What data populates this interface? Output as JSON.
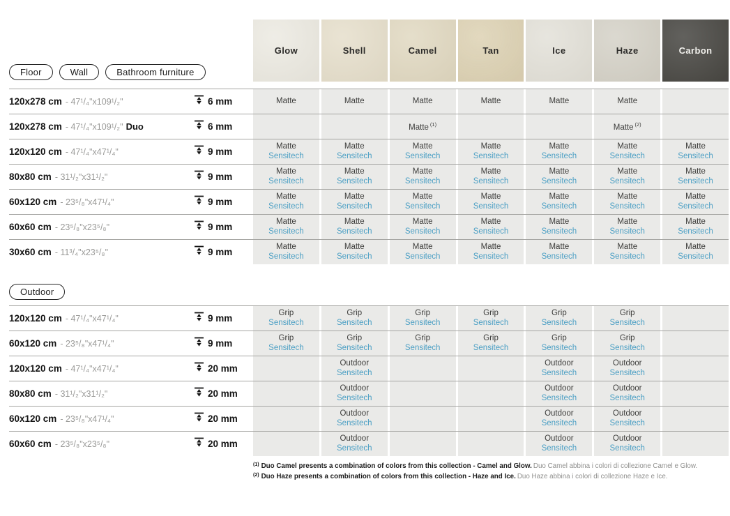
{
  "ui": {
    "accent_blue": "#4b9fc4",
    "cell_bg": "#eaeae8",
    "row_line": "#a5a5a2"
  },
  "filters": {
    "floor": "Floor",
    "wall": "Wall",
    "bathroom_furniture": "Bathroom furniture",
    "outdoor": "Outdoor"
  },
  "columns": [
    {
      "label": "Glow",
      "swatch": "#eceae2",
      "text": "#2d2c2a"
    },
    {
      "label": "Shell",
      "swatch": "#e6dfcc",
      "text": "#2d2c2a"
    },
    {
      "label": "Camel",
      "swatch": "#e1d9c2",
      "text": "#2d2c2a"
    },
    {
      "label": "Tan",
      "swatch": "#ddd2b4",
      "text": "#2d2c2a"
    },
    {
      "label": "Ice",
      "swatch": "#e3e1d9",
      "text": "#2d2c2a"
    },
    {
      "label": "Haze",
      "swatch": "#d5d2c8",
      "text": "#2d2c2a"
    },
    {
      "label": "Carbon",
      "swatch": "#484743",
      "text": "#f2f1ed"
    }
  ],
  "sections": {
    "floor": {
      "rows": [
        {
          "size": "120x278 cm",
          "inches": "- 47¹/₄\"x109¹/₂\"",
          "suffix": "",
          "thickness": "6 mm",
          "cells": [
            {
              "top": "Matte"
            },
            {
              "top": "Matte"
            },
            {
              "top": "Matte"
            },
            {
              "top": "Matte"
            },
            {
              "top": "Matte"
            },
            {
              "top": "Matte"
            },
            {}
          ]
        },
        {
          "size": "120x278 cm",
          "inches": "- 47¹/₄\"x109¹/₂\"",
          "suffix": "Duo",
          "thickness": "6 mm",
          "cells": [
            {},
            {},
            {
              "top": "Matte",
              "note": "(1)"
            },
            {},
            {},
            {
              "top": "Matte",
              "note": "(2)"
            },
            {}
          ]
        },
        {
          "size": "120x120 cm",
          "inches": "- 47¹/₄\"x47¹/₄\"",
          "suffix": "",
          "thickness": "9 mm",
          "cells": [
            {
              "top": "Matte",
              "bottom": "Sensitech"
            },
            {
              "top": "Matte",
              "bottom": "Sensitech"
            },
            {
              "top": "Matte",
              "bottom": "Sensitech"
            },
            {
              "top": "Matte",
              "bottom": "Sensitech"
            },
            {
              "top": "Matte",
              "bottom": "Sensitech"
            },
            {
              "top": "Matte",
              "bottom": "Sensitech"
            },
            {
              "top": "Matte",
              "bottom": "Sensitech"
            }
          ]
        },
        {
          "size": "80x80 cm",
          "inches": "- 31¹/₂\"x31¹/₂\"",
          "suffix": "",
          "thickness": "9 mm",
          "cells": [
            {
              "top": "Matte",
              "bottom": "Sensitech"
            },
            {
              "top": "Matte",
              "bottom": "Sensitech"
            },
            {
              "top": "Matte",
              "bottom": "Sensitech"
            },
            {
              "top": "Matte",
              "bottom": "Sensitech"
            },
            {
              "top": "Matte",
              "bottom": "Sensitech"
            },
            {
              "top": "Matte",
              "bottom": "Sensitech"
            },
            {
              "top": "Matte",
              "bottom": "Sensitech"
            }
          ]
        },
        {
          "size": "60x120 cm",
          "inches": "- 23⁵/₈\"x47¹/₄\"",
          "suffix": "",
          "thickness": "9 mm",
          "cells": [
            {
              "top": "Matte",
              "bottom": "Sensitech"
            },
            {
              "top": "Matte",
              "bottom": "Sensitech"
            },
            {
              "top": "Matte",
              "bottom": "Sensitech"
            },
            {
              "top": "Matte",
              "bottom": "Sensitech"
            },
            {
              "top": "Matte",
              "bottom": "Sensitech"
            },
            {
              "top": "Matte",
              "bottom": "Sensitech"
            },
            {
              "top": "Matte",
              "bottom": "Sensitech"
            }
          ]
        },
        {
          "size": "60x60 cm",
          "inches": "- 23⁵/₈\"x23⁵/₈\"",
          "suffix": "",
          "thickness": "9 mm",
          "cells": [
            {
              "top": "Matte",
              "bottom": "Sensitech"
            },
            {
              "top": "Matte",
              "bottom": "Sensitech"
            },
            {
              "top": "Matte",
              "bottom": "Sensitech"
            },
            {
              "top": "Matte",
              "bottom": "Sensitech"
            },
            {
              "top": "Matte",
              "bottom": "Sensitech"
            },
            {
              "top": "Matte",
              "bottom": "Sensitech"
            },
            {
              "top": "Matte",
              "bottom": "Sensitech"
            }
          ]
        },
        {
          "size": "30x60 cm",
          "inches": "- 11³/₄\"x23⁵/₈\"",
          "suffix": "",
          "thickness": "9 mm",
          "cells": [
            {
              "top": "Matte",
              "bottom": "Sensitech"
            },
            {
              "top": "Matte",
              "bottom": "Sensitech"
            },
            {
              "top": "Matte",
              "bottom": "Sensitech"
            },
            {
              "top": "Matte",
              "bottom": "Sensitech"
            },
            {
              "top": "Matte",
              "bottom": "Sensitech"
            },
            {
              "top": "Matte",
              "bottom": "Sensitech"
            },
            {
              "top": "Matte",
              "bottom": "Sensitech"
            }
          ]
        }
      ]
    },
    "outdoor": {
      "rows": [
        {
          "size": "120x120 cm",
          "inches": "- 47¹/₄\"x47¹/₄\"",
          "suffix": "",
          "thickness": "9 mm",
          "cells": [
            {
              "top": "Grip",
              "bottom": "Sensitech"
            },
            {
              "top": "Grip",
              "bottom": "Sensitech"
            },
            {
              "top": "Grip",
              "bottom": "Sensitech"
            },
            {
              "top": "Grip",
              "bottom": "Sensitech"
            },
            {
              "top": "Grip",
              "bottom": "Sensitech"
            },
            {
              "top": "Grip",
              "bottom": "Sensitech"
            },
            {}
          ]
        },
        {
          "size": "60x120 cm",
          "inches": "- 23⁵/₈\"x47¹/₄\"",
          "suffix": "",
          "thickness": "9 mm",
          "cells": [
            {
              "top": "Grip",
              "bottom": "Sensitech"
            },
            {
              "top": "Grip",
              "bottom": "Sensitech"
            },
            {
              "top": "Grip",
              "bottom": "Sensitech"
            },
            {
              "top": "Grip",
              "bottom": "Sensitech"
            },
            {
              "top": "Grip",
              "bottom": "Sensitech"
            },
            {
              "top": "Grip",
              "bottom": "Sensitech"
            },
            {}
          ]
        },
        {
          "size": "120x120 cm",
          "inches": "- 47¹/₄\"x47¹/₄\"",
          "suffix": "",
          "thickness": "20 mm",
          "cells": [
            {},
            {
              "top": "Outdoor",
              "bottom": "Sensitech"
            },
            {},
            {},
            {
              "top": "Outdoor",
              "bottom": "Sensitech"
            },
            {
              "top": "Outdoor",
              "bottom": "Sensitech"
            },
            {}
          ]
        },
        {
          "size": "80x80 cm",
          "inches": "- 31¹/₂\"x31¹/₂\"",
          "suffix": "",
          "thickness": "20 mm",
          "cells": [
            {},
            {
              "top": "Outdoor",
              "bottom": "Sensitech"
            },
            {},
            {},
            {
              "top": "Outdoor",
              "bottom": "Sensitech"
            },
            {
              "top": "Outdoor",
              "bottom": "Sensitech"
            },
            {}
          ]
        },
        {
          "size": "60x120 cm",
          "inches": "- 23⁵/₈\"x47¹/₄\"",
          "suffix": "",
          "thickness": "20 mm",
          "cells": [
            {},
            {
              "top": "Outdoor",
              "bottom": "Sensitech"
            },
            {},
            {},
            {
              "top": "Outdoor",
              "bottom": "Sensitech"
            },
            {
              "top": "Outdoor",
              "bottom": "Sensitech"
            },
            {}
          ]
        },
        {
          "size": "60x60 cm",
          "inches": "- 23⁵/₈\"x23⁵/₈\"",
          "suffix": "",
          "thickness": "20 mm",
          "cells": [
            {},
            {
              "top": "Outdoor",
              "bottom": "Sensitech"
            },
            {},
            {},
            {
              "top": "Outdoor",
              "bottom": "Sensitech"
            },
            {
              "top": "Outdoor",
              "bottom": "Sensitech"
            },
            {}
          ]
        }
      ]
    }
  },
  "footnotes": [
    {
      "marker": "(1)",
      "bold": "Duo Camel presents a combination of colors from this collection - Camel and Glow.",
      "regular": "Duo Camel abbina i colori di collezione Camel e Glow."
    },
    {
      "marker": "(2)",
      "bold": "Duo Haze presents a combination of colors from this collection - Haze and Ice.",
      "regular": "Duo Haze abbina i colori di collezione Haze e Ice."
    }
  ]
}
